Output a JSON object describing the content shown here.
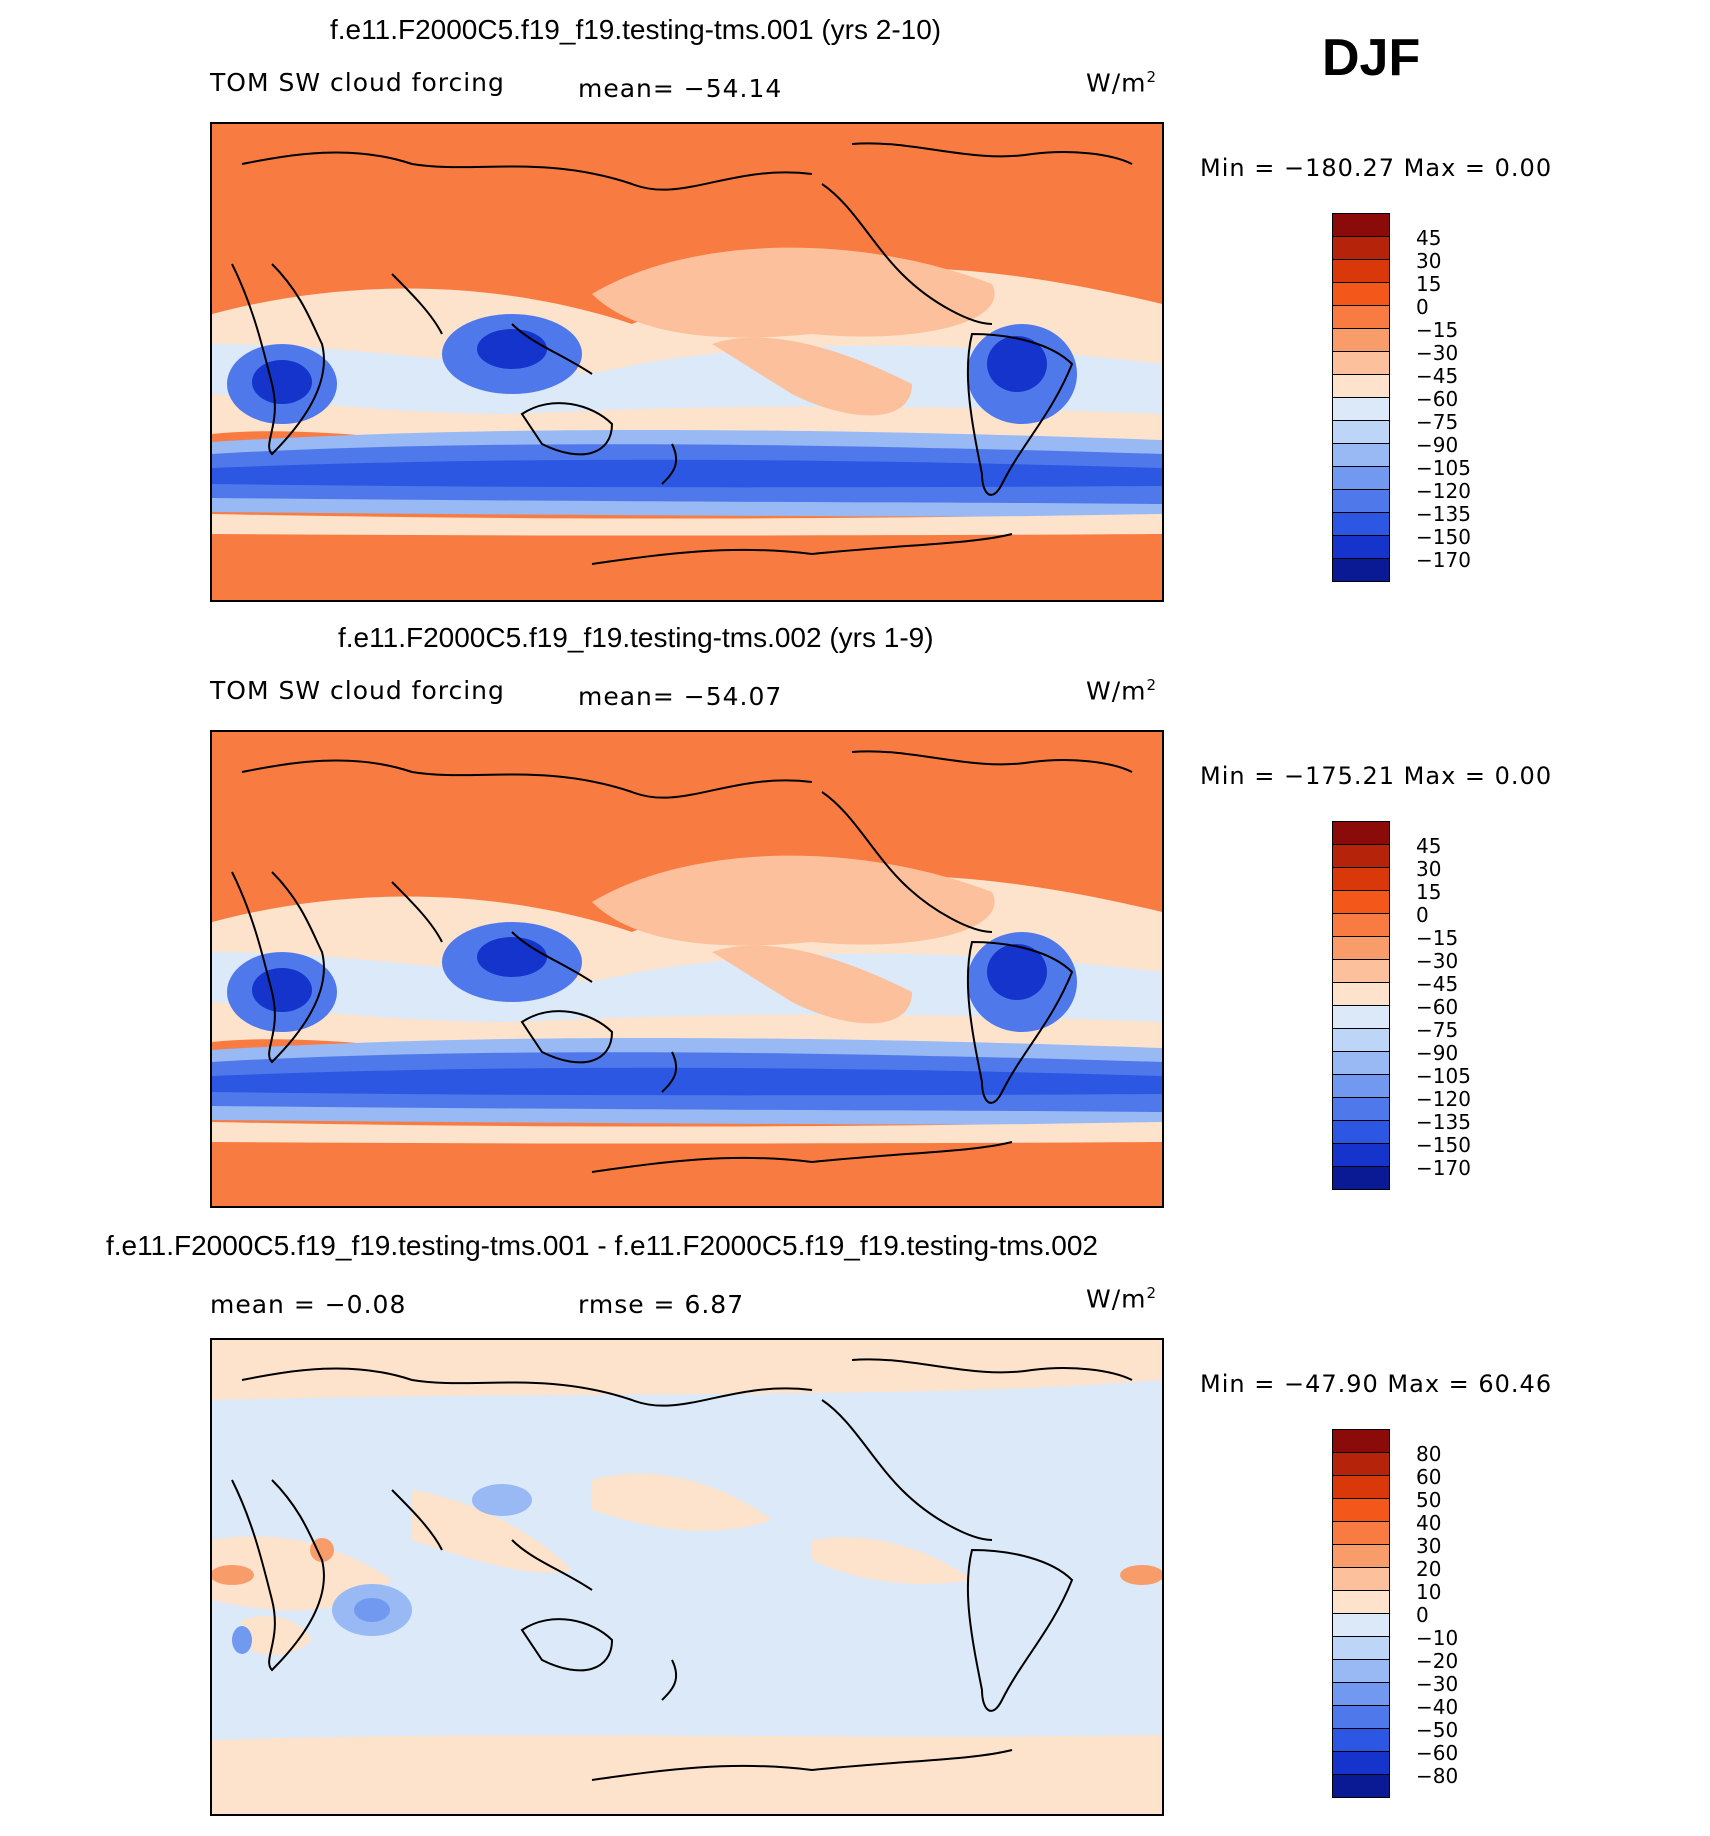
{
  "season": "DJF",
  "panels": [
    {
      "title": "f.e11.F2000C5.f19_f19.testing-tms.001 (yrs 2-10)",
      "left_label": "TOM SW cloud forcing",
      "center_label": "mean= −54.14",
      "units_base": "W/m",
      "units_exp": "2",
      "minmax": "Min = −180.27 Max =    0.00",
      "colorbar": {
        "labels": [
          "45",
          "30",
          "15",
          "0",
          "−15",
          "−30",
          "−45",
          "−60",
          "−75",
          "−90",
          "−105",
          "−120",
          "−135",
          "−150",
          "−170"
        ],
        "colors": [
          "#8b0a0a",
          "#b5230a",
          "#d9390a",
          "#f4571a",
          "#f87b41",
          "#f89d6a",
          "#fcc09c",
          "#fde3cc",
          "#dbe9f8",
          "#bdd5f6",
          "#98b9f3",
          "#7199ef",
          "#4f79ea",
          "#2c57e2",
          "#1534cc",
          "#0a1a94"
        ]
      }
    },
    {
      "title": "f.e11.F2000C5.f19_f19.testing-tms.002 (yrs 1-9)",
      "left_label": "TOM SW cloud forcing",
      "center_label": "mean= −54.07",
      "units_base": "W/m",
      "units_exp": "2",
      "minmax": "Min = −175.21 Max =    0.00",
      "colorbar": {
        "labels": [
          "45",
          "30",
          "15",
          "0",
          "−15",
          "−30",
          "−45",
          "−60",
          "−75",
          "−90",
          "−105",
          "−120",
          "−135",
          "−150",
          "−170"
        ],
        "colors": [
          "#8b0a0a",
          "#b5230a",
          "#d9390a",
          "#f4571a",
          "#f87b41",
          "#f89d6a",
          "#fcc09c",
          "#fde3cc",
          "#dbe9f8",
          "#bdd5f6",
          "#98b9f3",
          "#7199ef",
          "#4f79ea",
          "#2c57e2",
          "#1534cc",
          "#0a1a94"
        ]
      }
    },
    {
      "title": "f.e11.F2000C5.f19_f19.testing-tms.001 - f.e11.F2000C5.f19_f19.testing-tms.002",
      "left_label": "mean =   −0.08",
      "center_label": "rmse =    6.87",
      "units_base": "W/m",
      "units_exp": "2",
      "minmax": "Min = −47.90 Max =   60.46",
      "colorbar": {
        "labels": [
          "80",
          "60",
          "50",
          "40",
          "30",
          "20",
          "10",
          "0",
          "−10",
          "−20",
          "−30",
          "−40",
          "−50",
          "−60",
          "−80"
        ],
        "colors": [
          "#8b0a0a",
          "#b5230a",
          "#d9390a",
          "#f4571a",
          "#f87b41",
          "#f89d6a",
          "#fcc09c",
          "#fde3cc",
          "#dbe9f8",
          "#bdd5f6",
          "#98b9f3",
          "#7199ef",
          "#4f79ea",
          "#2c57e2",
          "#1534cc",
          "#0a1a94"
        ]
      }
    }
  ]
}
